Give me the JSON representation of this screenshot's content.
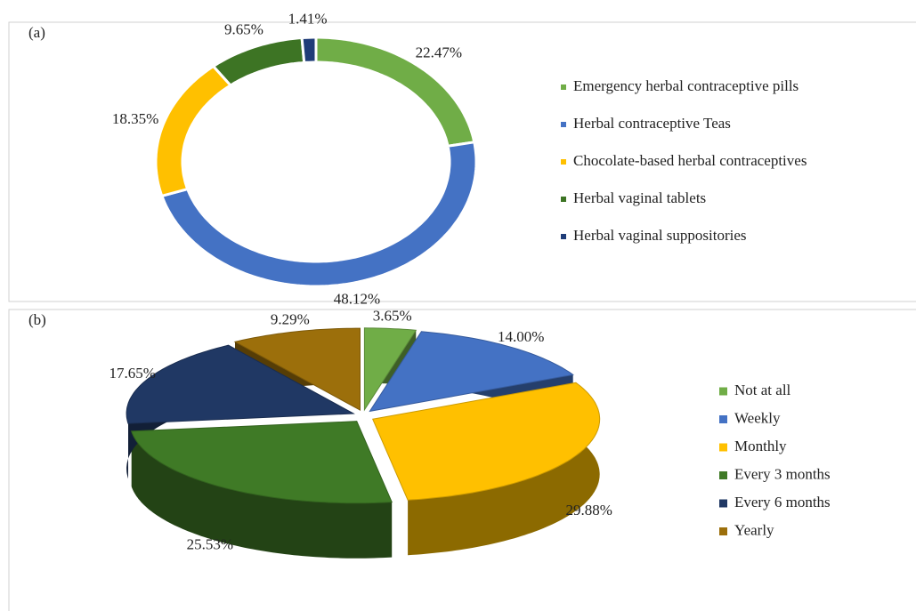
{
  "chart_data": [
    {
      "type": "donut",
      "title": "(a)",
      "categories": [
        "Emergency herbal contraceptive pills",
        "Herbal contraceptive Teas",
        "Chocolate-based herbal contraceptives",
        "Herbal vaginal tablets",
        "Herbal vaginal suppositories"
      ],
      "values": [
        22.47,
        48.12,
        18.35,
        9.65,
        1.41
      ],
      "value_labels": [
        "22.47%",
        "48.12%",
        "18.35%",
        "9.65%",
        "1.41%"
      ],
      "colors": [
        "#70ad47",
        "#4472c4",
        "#ffc000",
        "#3d7424",
        "#1f3c78"
      ]
    },
    {
      "type": "pie3d",
      "title": "(b)",
      "categories": [
        "Not at all",
        "Weekly",
        "Monthly",
        "Every 3 months",
        "Every 6 months",
        "Yearly"
      ],
      "values": [
        3.65,
        14.0,
        29.88,
        25.53,
        17.65,
        9.29
      ],
      "value_labels": [
        "3.65%",
        "14.00%",
        "29.88%",
        "25.53%",
        "17.65%",
        "9.29%"
      ],
      "colors": [
        "#70ad47",
        "#4472c4",
        "#ffc000",
        "#3f7a26",
        "#203864",
        "#9c6f0b"
      ]
    }
  ]
}
